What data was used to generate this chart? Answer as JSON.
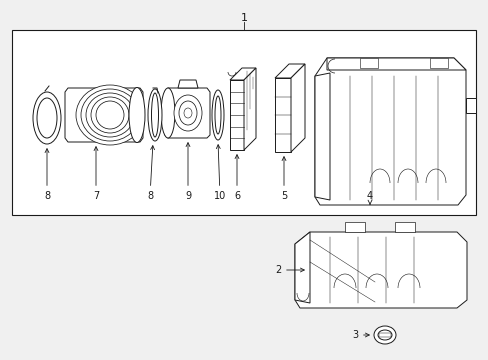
{
  "bg": "#f0f0f0",
  "lc": "#1a1a1a",
  "white": "#ffffff",
  "fig_w": 4.89,
  "fig_h": 3.6,
  "dpi": 100
}
